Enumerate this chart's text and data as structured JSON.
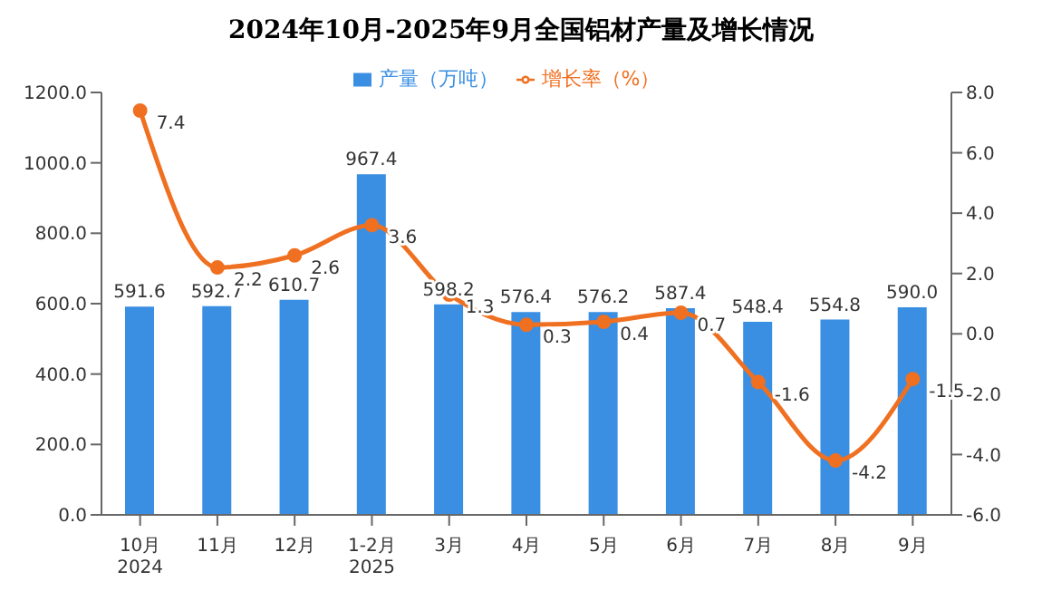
{
  "chart_data": {
    "type": "bar",
    "title": "2024年10月-2025年9月全国铝材产量及增长情况",
    "categories": [
      "10月\n2024",
      "11月",
      "12月",
      "1-2月\n2025",
      "3月",
      "4月",
      "5月",
      "6月",
      "7月",
      "8月",
      "9月"
    ],
    "series": [
      {
        "name": "产量（万吨）",
        "color": "#3b8fe3",
        "values": [
          591.6,
          592.7,
          610.7,
          967.4,
          598.2,
          576.4,
          576.2,
          587.4,
          548.4,
          554.8,
          590.0
        ],
        "value_labels": [
          "591.6",
          "592.7",
          "610.7",
          "967.4",
          "598.2",
          "576.4",
          "576.2",
          "587.4",
          "548.4",
          "554.8",
          "590.0"
        ]
      },
      {
        "name": "增长率（%）",
        "type": "line",
        "axis": "y2",
        "color": "#f07021",
        "values": [
          7.4,
          2.2,
          2.6,
          3.6,
          1.3,
          0.3,
          0.4,
          0.7,
          -1.6,
          -4.2,
          -1.5
        ],
        "value_labels": [
          "7.4",
          "2.2",
          "2.6",
          "3.6",
          "1.3",
          "0.3",
          "0.4",
          "0.7",
          "-1.6",
          "-4.2",
          "-1.5"
        ]
      }
    ],
    "ylim": [
      0,
      1200
    ],
    "yticks": [
      {
        "value": 0,
        "label": "0.0"
      },
      {
        "value": 200,
        "label": "200.0"
      },
      {
        "value": 400,
        "label": "400.0"
      },
      {
        "value": 600,
        "label": "600.0"
      },
      {
        "value": 800,
        "label": "800.0"
      },
      {
        "value": 1000,
        "label": "1000.0"
      },
      {
        "value": 1200,
        "label": "1200.0"
      }
    ],
    "y2lim": [
      -6,
      8
    ],
    "y2ticks": [
      {
        "value": -6,
        "label": "-6.0"
      },
      {
        "value": -4,
        "label": "-4.0"
      },
      {
        "value": -2,
        "label": "-2.0"
      },
      {
        "value": 0,
        "label": "0.0"
      },
      {
        "value": 2,
        "label": "2.0"
      },
      {
        "value": 4,
        "label": "4.0"
      },
      {
        "value": 6,
        "label": "6.0"
      },
      {
        "value": 8,
        "label": "8.0"
      }
    ],
    "legend": "top",
    "marker": "circle",
    "grid": false
  }
}
